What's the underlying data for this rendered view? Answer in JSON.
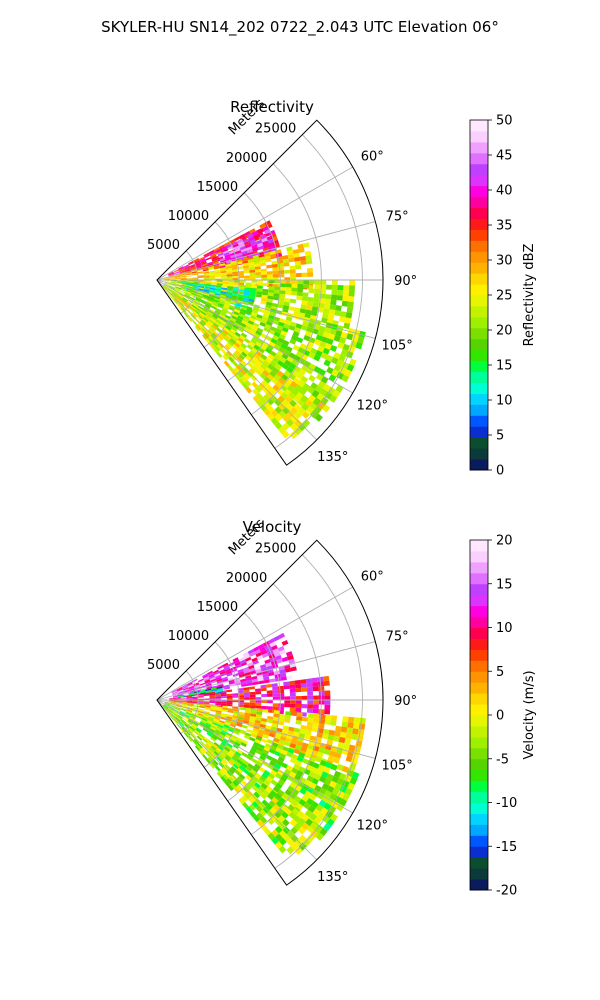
{
  "title": "SKYLER-HU  SN14_202  0722_2.043 UTC Elevation 06°",
  "chart_data": [
    {
      "type": "heatmap",
      "projection": "polar-sector",
      "title": "Reflectivity",
      "radial_label": "Meters",
      "radial_ticks": [
        5000,
        10000,
        15000,
        20000,
        25000
      ],
      "radial_tick_labels": [
        "5000",
        "10000",
        "15000",
        "20000",
        "25000"
      ],
      "r_max": 27500,
      "angle_range": [
        45,
        145
      ],
      "angle_ticks": [
        60,
        75,
        90,
        105,
        120,
        135
      ],
      "angle_tick_labels": [
        "60°",
        "75°",
        "90°",
        "105°",
        "120°",
        "135°"
      ],
      "grid": true,
      "colorbar": {
        "label": "Reflectivity dBZ",
        "range": [
          0,
          50
        ],
        "ticks": [
          0,
          5,
          10,
          15,
          20,
          25,
          30,
          35,
          40,
          45,
          50
        ],
        "tick_labels": [
          "0",
          "5",
          "10",
          "15",
          "20",
          "25",
          "30",
          "35",
          "40",
          "45",
          "50"
        ],
        "colors": [
          "#0a1c5c",
          "#0c3a3a",
          "#0b4d2e",
          "#0a2fd0",
          "#0057ff",
          "#00a8ff",
          "#00d4ff",
          "#00ffd4",
          "#00ff9a",
          "#00ff40",
          "#33e600",
          "#55d400",
          "#7ae000",
          "#9ef000",
          "#c2f200",
          "#e6f500",
          "#fff000",
          "#ffd700",
          "#ffb300",
          "#ff9400",
          "#ff7000",
          "#ff4000",
          "#ff1a1a",
          "#ff0050",
          "#ff00a0",
          "#ff00e0",
          "#dd33ff",
          "#c040ff",
          "#e070ff",
          "#f0a0ff",
          "#fad0ff",
          "#ffe8ff"
        ]
      },
      "regions": [
        {
          "theta": [
            62,
            78
          ],
          "r": [
            1500,
            15000
          ],
          "value": 36
        },
        {
          "theta": [
            64,
            76
          ],
          "r": [
            8000,
            15000
          ],
          "value": 42
        },
        {
          "theta": [
            76,
            92
          ],
          "r": [
            800,
            19000
          ],
          "value": 27
        },
        {
          "theta": [
            90,
            104
          ],
          "r": [
            1000,
            24000
          ],
          "value": 22
        },
        {
          "theta": [
            95,
            110
          ],
          "r": [
            3000,
            12000
          ],
          "value": 13
        },
        {
          "theta": [
            104,
            130
          ],
          "r": [
            1000,
            26000
          ],
          "value": 21
        },
        {
          "theta": [
            125,
            140
          ],
          "r": [
            1000,
            25000
          ],
          "value": 24
        }
      ]
    },
    {
      "type": "heatmap",
      "projection": "polar-sector",
      "title": "Velocity",
      "radial_label": "Meters",
      "radial_ticks": [
        5000,
        10000,
        15000,
        20000,
        25000
      ],
      "radial_tick_labels": [
        "5000",
        "10000",
        "15000",
        "20000",
        "25000"
      ],
      "r_max": 27500,
      "angle_range": [
        45,
        145
      ],
      "angle_ticks": [
        60,
        75,
        90,
        105,
        120,
        135
      ],
      "angle_tick_labels": [
        "60°",
        "75°",
        "90°",
        "105°",
        "120°",
        "135°"
      ],
      "grid": true,
      "colorbar": {
        "label": "Velocity (m/s)",
        "range": [
          -20,
          20
        ],
        "ticks": [
          -20,
          -15,
          -10,
          -5,
          0,
          5,
          10,
          15,
          20
        ],
        "tick_labels": [
          "-20",
          "-15",
          "-10",
          "-5",
          "0",
          "5",
          "10",
          "15",
          "20"
        ],
        "colors": [
          "#0a1c5c",
          "#0c3a3a",
          "#0b4d2e",
          "#0a2fd0",
          "#0057ff",
          "#00a8ff",
          "#00d4ff",
          "#00ffd4",
          "#00ff9a",
          "#00ff40",
          "#33e600",
          "#55d400",
          "#7ae000",
          "#9ef000",
          "#c2f200",
          "#e6f500",
          "#fff000",
          "#ffd700",
          "#ffb300",
          "#ff9400",
          "#ff7000",
          "#ff4000",
          "#ff1a1a",
          "#ff0050",
          "#ff00a0",
          "#ff00e0",
          "#dd33ff",
          "#c040ff",
          "#e070ff",
          "#f0a0ff",
          "#fad0ff",
          "#ffe8ff"
        ]
      },
      "regions": [
        {
          "theta": [
            62,
            80
          ],
          "r": [
            2000,
            17000
          ],
          "value": 14
        },
        {
          "theta": [
            78,
            84
          ],
          "r": [
            2500,
            8000
          ],
          "value": -12
        },
        {
          "theta": [
            82,
            96
          ],
          "r": [
            1500,
            21000
          ],
          "value": 10
        },
        {
          "theta": [
            95,
            110
          ],
          "r": [
            1000,
            25000
          ],
          "value": 1
        },
        {
          "theta": [
            110,
            130
          ],
          "r": [
            1000,
            26000
          ],
          "value": -4
        },
        {
          "theta": [
            128,
            140
          ],
          "r": [
            1000,
            25000
          ],
          "value": -3
        }
      ]
    }
  ]
}
